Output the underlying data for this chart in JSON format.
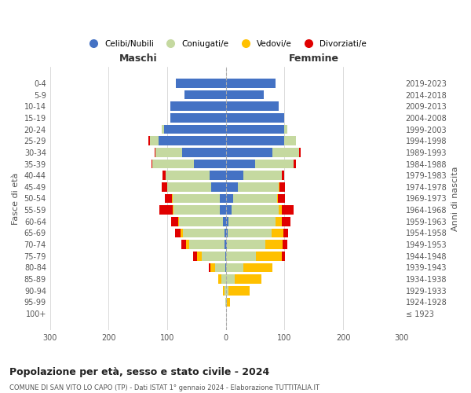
{
  "age_groups": [
    "100+",
    "95-99",
    "90-94",
    "85-89",
    "80-84",
    "75-79",
    "70-74",
    "65-69",
    "60-64",
    "55-59",
    "50-54",
    "45-49",
    "40-44",
    "35-39",
    "30-34",
    "25-29",
    "20-24",
    "15-19",
    "10-14",
    "5-9",
    "0-4"
  ],
  "birth_years": [
    "≤ 1923",
    "1924-1928",
    "1929-1933",
    "1934-1938",
    "1939-1943",
    "1944-1948",
    "1949-1953",
    "1954-1958",
    "1959-1963",
    "1964-1968",
    "1969-1973",
    "1974-1978",
    "1979-1983",
    "1984-1988",
    "1989-1993",
    "1994-1998",
    "1999-2003",
    "2004-2008",
    "2009-2013",
    "2014-2018",
    "2019-2023"
  ],
  "maschi": {
    "celibi": [
      0,
      0,
      0,
      0,
      1,
      1,
      2,
      3,
      5,
      10,
      11,
      25,
      28,
      55,
      75,
      115,
      105,
      95,
      95,
      70,
      85
    ],
    "coniugati": [
      0,
      1,
      3,
      8,
      18,
      40,
      60,
      70,
      75,
      80,
      80,
      75,
      75,
      70,
      45,
      15,
      5,
      0,
      0,
      0,
      0
    ],
    "vedovi": [
      0,
      0,
      2,
      5,
      8,
      8,
      6,
      4,
      2,
      1,
      1,
      0,
      0,
      0,
      0,
      0,
      0,
      0,
      0,
      0,
      0
    ],
    "divorziati": [
      0,
      0,
      0,
      0,
      2,
      7,
      8,
      10,
      12,
      22,
      12,
      10,
      5,
      2,
      2,
      2,
      0,
      0,
      0,
      0,
      0
    ]
  },
  "femmine": {
    "nubili": [
      0,
      0,
      0,
      0,
      0,
      1,
      2,
      3,
      5,
      10,
      12,
      20,
      30,
      50,
      80,
      100,
      100,
      100,
      90,
      65,
      85
    ],
    "coniugate": [
      0,
      2,
      5,
      15,
      30,
      50,
      65,
      75,
      80,
      80,
      75,
      70,
      65,
      65,
      45,
      20,
      5,
      0,
      0,
      0,
      0
    ],
    "vedove": [
      0,
      5,
      35,
      45,
      50,
      45,
      30,
      20,
      10,
      5,
      2,
      1,
      0,
      0,
      0,
      0,
      0,
      0,
      0,
      0,
      0
    ],
    "divorziate": [
      0,
      0,
      0,
      0,
      0,
      5,
      8,
      8,
      15,
      20,
      12,
      10,
      5,
      5,
      2,
      0,
      0,
      0,
      0,
      0,
      0
    ]
  },
  "colors": {
    "celibi": "#4472c4",
    "coniugati": "#c5d9a0",
    "vedovi": "#ffc000",
    "divorziati": "#e00000"
  },
  "title": "Popolazione per età, sesso e stato civile - 2024",
  "subtitle": "COMUNE DI SAN VITO LO CAPO (TP) - Dati ISTAT 1° gennaio 2024 - Elaborazione TUTTITALIA.IT",
  "ylabel_left": "Fasce di età",
  "ylabel_right": "Anni di nascita",
  "xlabel_maschi": "Maschi",
  "xlabel_femmine": "Femmine",
  "xlim": 300,
  "bg_color": "#ffffff",
  "grid_color": "#cccccc",
  "bar_height": 0.8
}
